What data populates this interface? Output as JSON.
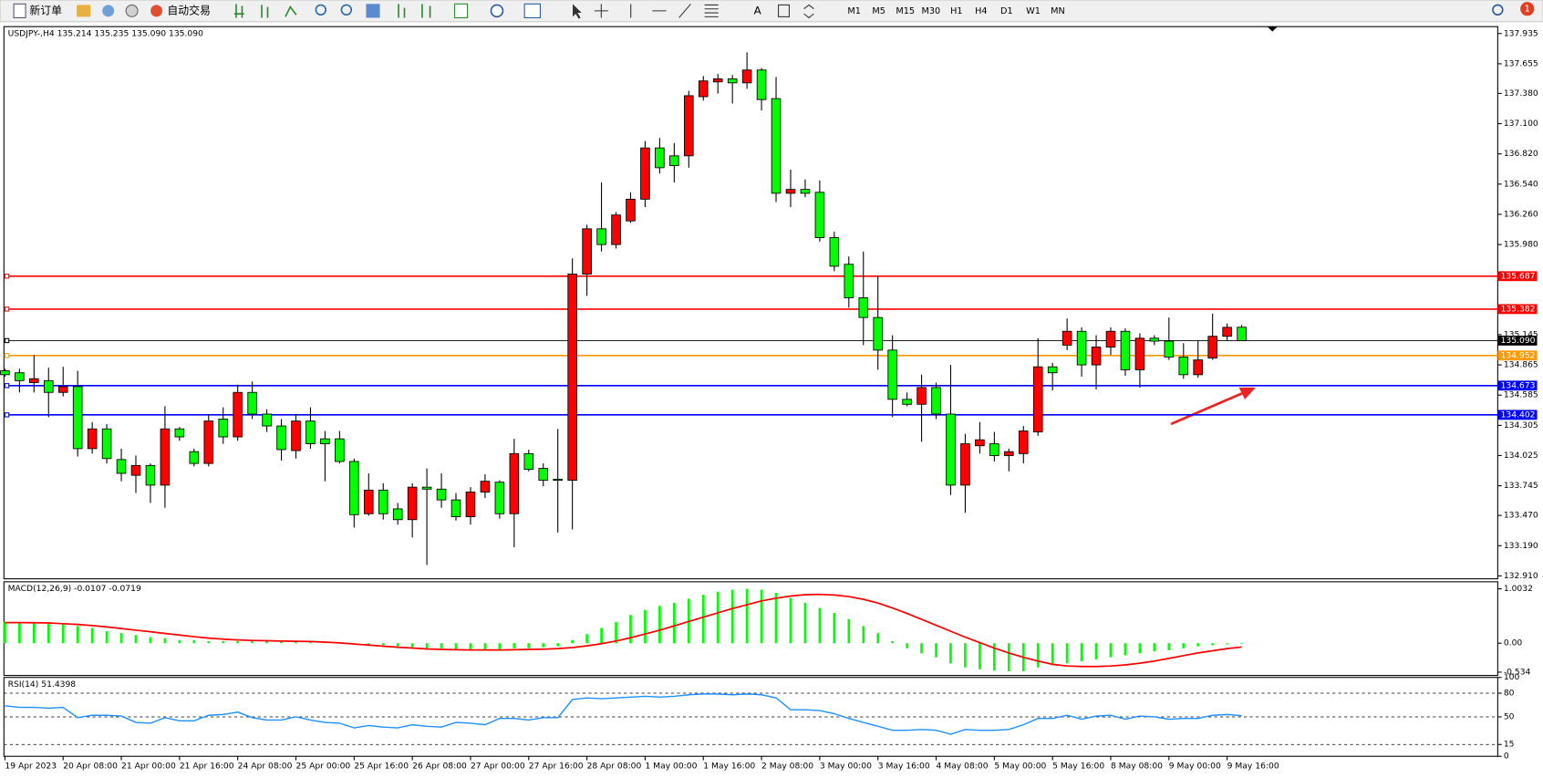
{
  "toolbar": {
    "new_order": "新订单",
    "auto_trading": "自动交易",
    "timeframes": [
      "M1",
      "M5",
      "M15",
      "M30",
      "H1",
      "H4",
      "D1",
      "W1",
      "MN"
    ],
    "notifications": "1"
  },
  "chart_data": [
    {
      "type": "candlestick",
      "title": "USDJPY-,H4  135.214 135.235 135.090 135.090",
      "categories": [
        "19 Apr 2023",
        null,
        null,
        null,
        "20 Apr 08:00",
        null,
        null,
        null,
        "21 Apr 00:00",
        null,
        null,
        null,
        "21 Apr 16:00",
        null,
        null,
        null,
        "24 Apr 08:00",
        null,
        null,
        null,
        "25 Apr 00:00",
        null,
        null,
        null,
        "25 Apr 16:00",
        null,
        null,
        null,
        "26 Apr 08:00",
        null,
        null,
        null,
        "27 Apr 00:00",
        null,
        null,
        null,
        "27 Apr 16:00",
        null,
        null,
        null,
        "28 Apr 08:00",
        null,
        null,
        null,
        "1 May 00:00",
        null,
        null,
        null,
        "1 May 16:00",
        null,
        null,
        null,
        "2 May 08:00",
        null,
        null,
        null,
        "3 May 00:00",
        null,
        null,
        null,
        "3 May 16:00",
        null,
        null,
        null,
        "4 May 08:00",
        null,
        null,
        null,
        "5 May 00:00",
        null,
        null,
        null,
        "5 May 16:00",
        null,
        null,
        null,
        "8 May 08:00",
        null,
        null,
        null,
        "9 May 00:00",
        null,
        null,
        null,
        "9 May 16:00",
        null
      ],
      "open": [
        134.81,
        134.792,
        134.701,
        134.719,
        134.61,
        134.664,
        134.089,
        134.272,
        133.988,
        133.842,
        133.933,
        133.751,
        134.272,
        134.061,
        133.952,
        134.363,
        134.198,
        134.61,
        134.409,
        134.299,
        134.071,
        134.345,
        134.18,
        134.18,
        133.97,
        133.486,
        133.705,
        133.531,
        133.431,
        133.732,
        133.714,
        133.614,
        133.458,
        133.687,
        133.778,
        133.486,
        134.043,
        133.906,
        133.806,
        133.796,
        135.706,
        136.126,
        135.98,
        136.199,
        136.4,
        136.875,
        136.802,
        136.802,
        137.35,
        137.487,
        137.515,
        137.478,
        137.597,
        137.332,
        136.455,
        136.491,
        136.464,
        136.044,
        135.797,
        135.487,
        135.304,
        135.002,
        134.546,
        134.5,
        134.655,
        134.409,
        133.751,
        134.116,
        134.134,
        134.025,
        134.043,
        134.244,
        134.847,
        135.048,
        135.176,
        134.865,
        135.03,
        135.176,
        134.82,
        135.112,
        135.085,
        134.938,
        134.774,
        134.929,
        135.13,
        135.214
      ],
      "high": [
        134.829,
        134.829,
        134.957,
        134.838,
        134.847,
        134.81,
        134.335,
        134.317,
        134.089,
        134.025,
        133.952,
        134.482,
        134.29,
        134.089,
        134.409,
        134.472,
        134.683,
        134.71,
        134.454,
        134.363,
        134.409,
        134.472,
        134.253,
        134.253,
        133.997,
        133.86,
        133.769,
        133.586,
        133.769,
        133.906,
        133.86,
        133.678,
        133.732,
        133.851,
        133.796,
        134.18,
        134.08,
        133.952,
        134.272,
        135.852,
        136.163,
        136.555,
        136.281,
        136.464,
        136.939,
        136.967,
        136.921,
        137.405,
        137.542,
        137.56,
        137.551,
        137.761,
        137.615,
        137.533,
        136.674,
        136.583,
        136.574,
        136.099,
        135.87,
        135.916,
        135.688,
        135.14,
        134.61,
        134.774,
        134.701,
        134.865,
        134.226,
        134.335,
        134.244,
        134.089,
        134.299,
        135.112,
        134.884,
        135.295,
        135.213,
        135.14,
        135.213,
        135.203,
        135.158,
        135.14,
        135.304,
        135.066,
        135.094,
        135.34,
        135.249,
        135.235
      ],
      "low": [
        134.756,
        134.61,
        134.61,
        134.381,
        134.573,
        134.016,
        134.043,
        133.952,
        133.787,
        133.678,
        133.586,
        133.541,
        134.162,
        133.924,
        133.924,
        134.134,
        134.162,
        134.363,
        134.244,
        133.979,
        133.997,
        134.089,
        133.787,
        133.952,
        133.358,
        133.467,
        133.431,
        133.385,
        133.266,
        133.011,
        133.541,
        133.422,
        133.385,
        133.632,
        133.44,
        133.175,
        133.879,
        133.741,
        133.312,
        133.34,
        135.505,
        135.916,
        135.943,
        136.181,
        136.327,
        136.638,
        136.555,
        136.692,
        137.314,
        137.378,
        137.286,
        137.423,
        137.222,
        136.373,
        136.327,
        136.418,
        136.007,
        135.733,
        135.395,
        135.048,
        134.82,
        134.381,
        134.482,
        134.153,
        134.363,
        133.659,
        133.495,
        134.043,
        133.97,
        133.879,
        133.952,
        134.208,
        134.628,
        135.002,
        134.756,
        134.637,
        134.957,
        134.765,
        134.655,
        135.048,
        134.911,
        134.737,
        134.747,
        134.911,
        135.094,
        135.09
      ],
      "close": [
        134.774,
        134.719,
        134.737,
        134.61,
        134.664,
        134.089,
        134.272,
        133.997,
        133.86,
        133.933,
        133.751,
        134.272,
        134.198,
        133.952,
        134.345,
        134.198,
        134.61,
        134.409,
        134.299,
        134.08,
        134.345,
        134.134,
        134.134,
        133.97,
        133.477,
        133.705,
        133.486,
        133.431,
        133.732,
        133.714,
        133.614,
        133.458,
        133.687,
        133.787,
        133.486,
        134.043,
        133.897,
        133.796,
        133.796,
        135.706,
        136.126,
        135.98,
        136.254,
        136.4,
        136.875,
        136.692,
        136.711,
        137.359,
        137.496,
        137.515,
        137.478,
        137.597,
        137.323,
        136.455,
        136.491,
        136.455,
        136.044,
        135.779,
        135.487,
        135.304,
        135.002,
        134.546,
        134.5,
        134.655,
        134.409,
        133.751,
        134.134,
        134.171,
        134.025,
        134.061,
        134.253,
        134.847,
        134.792,
        135.176,
        134.865,
        135.03,
        135.176,
        134.82,
        135.112,
        135.085,
        134.938,
        134.774,
        134.911,
        135.13,
        135.213,
        135.09
      ],
      "up_color": "#ff0000",
      "down_color": "#00ff00",
      "ylim": [
        132.883,
        137.999
      ],
      "yticks": [
        137.935,
        137.655,
        {
          "value": 137.38,
          "label": "137.380"
        },
        {
          "value": 137.1,
          "label": "137.100"
        },
        {
          "value": 136.82,
          "label": "136.820"
        },
        {
          "value": 136.54,
          "label": "136.540"
        },
        {
          "value": 136.26,
          "label": "136.260"
        },
        {
          "value": 135.98,
          "label": "135.980"
        },
        135.145,
        134.865,
        134.585,
        134.305,
        134.025,
        133.745,
        {
          "value": 133.47,
          "label": "133.470"
        },
        {
          "value": 133.19,
          "label": "133.190"
        },
        {
          "value": 132.91,
          "label": "132.910"
        }
      ],
      "hlines": [
        {
          "value": 135.687,
          "label": "135.687",
          "color": "#ff0000"
        },
        {
          "value": 135.382,
          "label": "135.382",
          "color": "#ff0000"
        },
        {
          "value": 135.09,
          "label": "135.090",
          "color": "#000000"
        },
        {
          "value": 134.952,
          "label": "134.952",
          "color": "#ff9900"
        },
        {
          "value": 134.673,
          "label": "134.673",
          "color": "#0000ff"
        },
        {
          "value": 134.402,
          "label": "134.402",
          "color": "#0000ff"
        }
      ]
    },
    {
      "type": "macd",
      "title": "MACD(12,26,9) -0.0107 -0.0719",
      "ylim": [
        -0.595,
        1.133
      ],
      "yticks": [
        1.0032,
        {
          "value": 0,
          "label": "0.00"
        },
        -0.534
      ],
      "series": [
        {
          "style": "bar",
          "color": "#00ff00",
          "values": [
            0.39,
            0.39,
            0.39,
            0.372,
            0.353,
            0.316,
            0.279,
            0.223,
            0.186,
            0.149,
            0.111,
            0.093,
            0.056,
            0.056,
            0.037,
            0.037,
            0.037,
            0.037,
            0.037,
            0.037,
            0.037,
            0.019,
            0.019,
            0.0,
            -0.019,
            -0.037,
            -0.037,
            -0.056,
            -0.074,
            -0.093,
            -0.093,
            -0.111,
            -0.111,
            -0.111,
            -0.111,
            -0.093,
            -0.093,
            -0.074,
            -0.056,
            0.056,
            0.167,
            0.279,
            0.39,
            0.52,
            0.613,
            0.687,
            0.743,
            0.818,
            0.892,
            0.948,
            0.985,
            1.003,
            0.985,
            0.929,
            0.836,
            0.743,
            0.65,
            0.557,
            0.446,
            0.316,
            0.186,
            0.037,
            -0.093,
            -0.186,
            -0.26,
            -0.372,
            -0.446,
            -0.483,
            -0.502,
            -0.52,
            -0.52,
            -0.446,
            -0.409,
            -0.372,
            -0.334,
            -0.297,
            -0.26,
            -0.223,
            -0.186,
            -0.149,
            -0.13,
            -0.093,
            -0.056,
            -0.037,
            -0.019,
            -0.0107
          ]
        },
        {
          "style": "line",
          "color": "#ff0000",
          "values": [
            0.38,
            0.38,
            0.378,
            0.372,
            0.36,
            0.345,
            0.325,
            0.3,
            0.27,
            0.24,
            0.21,
            0.18,
            0.15,
            0.12,
            0.095,
            0.075,
            0.06,
            0.05,
            0.045,
            0.04,
            0.035,
            0.03,
            0.02,
            0.005,
            -0.015,
            -0.035,
            -0.055,
            -0.075,
            -0.09,
            -0.105,
            -0.115,
            -0.12,
            -0.125,
            -0.125,
            -0.125,
            -0.12,
            -0.115,
            -0.11,
            -0.1,
            -0.08,
            -0.05,
            -0.01,
            0.04,
            0.1,
            0.17,
            0.24,
            0.32,
            0.4,
            0.48,
            0.56,
            0.64,
            0.71,
            0.78,
            0.83,
            0.87,
            0.895,
            0.9,
            0.89,
            0.86,
            0.81,
            0.74,
            0.65,
            0.55,
            0.44,
            0.33,
            0.22,
            0.11,
            0.01,
            -0.09,
            -0.18,
            -0.26,
            -0.33,
            -0.39,
            -0.42,
            -0.43,
            -0.43,
            -0.42,
            -0.4,
            -0.37,
            -0.33,
            -0.28,
            -0.23,
            -0.18,
            -0.14,
            -0.1,
            -0.0719
          ]
        }
      ]
    },
    {
      "type": "rsi",
      "title": "RSI(14) 51.4398",
      "ylim": [
        0,
        100
      ],
      "yticks": [
        100,
        80,
        50,
        15,
        0
      ],
      "series": [
        {
          "style": "line",
          "color": "#1e90ff",
          "values": [
            64,
            62,
            62,
            61,
            62,
            49,
            52,
            52,
            51,
            43,
            42,
            49,
            45,
            45,
            52,
            53,
            56,
            49,
            46,
            46,
            50,
            46,
            43,
            42,
            36,
            39,
            37,
            36,
            40,
            38,
            37,
            43,
            42,
            40,
            48,
            48,
            46,
            49,
            49,
            72,
            74,
            73,
            74,
            75,
            76,
            75,
            76,
            78,
            79,
            79,
            78,
            79,
            78,
            74,
            59,
            59,
            58,
            54,
            48,
            43,
            38,
            33,
            33,
            34,
            33,
            28,
            34,
            33,
            33,
            34,
            40,
            48,
            48,
            52,
            47,
            51,
            52,
            47,
            51,
            50,
            47,
            48,
            48,
            52,
            53,
            51.4398
          ]
        }
      ]
    }
  ]
}
